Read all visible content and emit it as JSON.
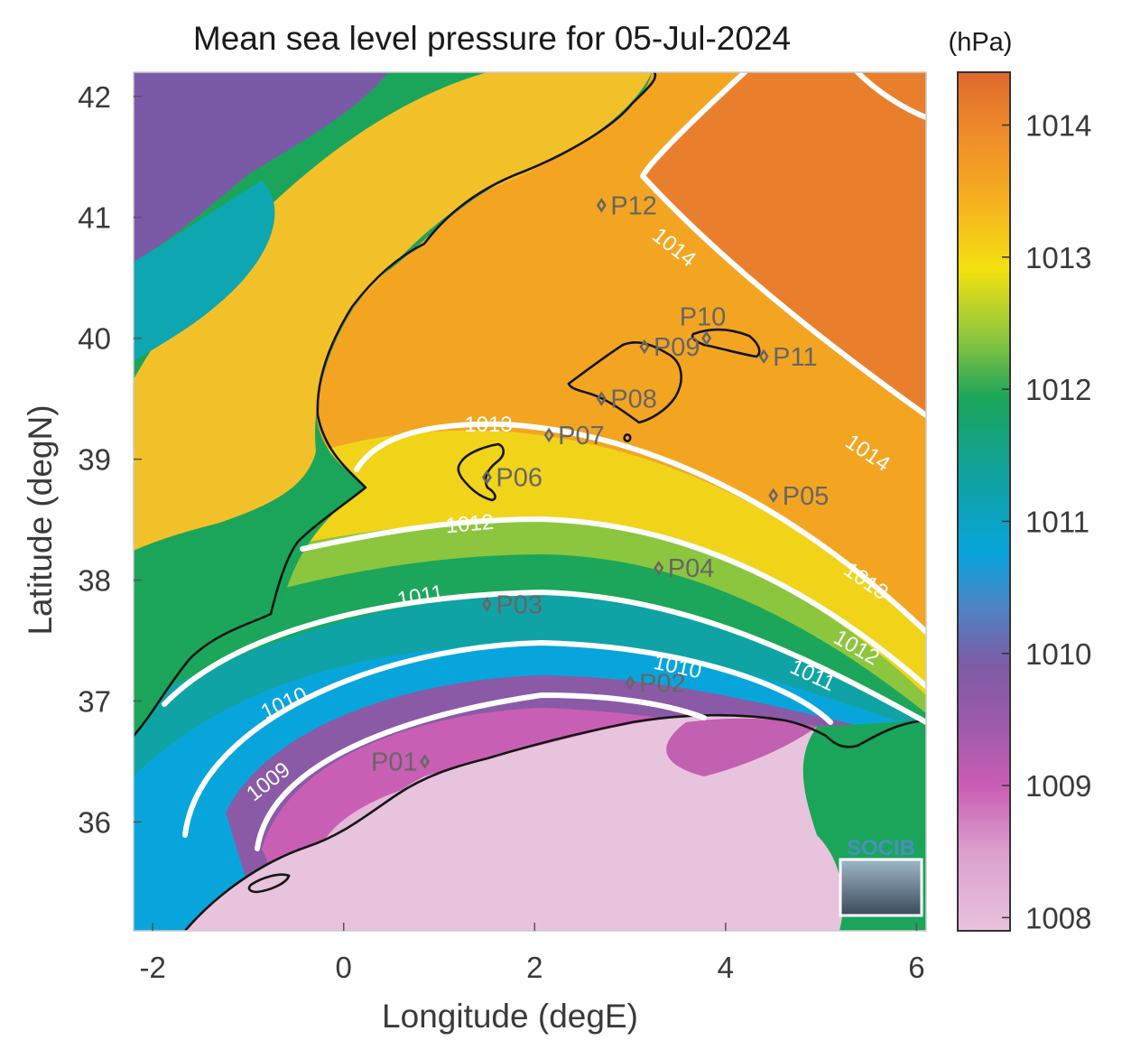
{
  "title": "Mean sea level pressure for 05-Jul-2024",
  "colorbar": {
    "unit": "(hPa)",
    "ticks": [
      "1008",
      "1009",
      "1010",
      "1011",
      "1012",
      "1013",
      "1014"
    ],
    "range": [
      1007.9,
      1014.4
    ],
    "stops": [
      "#e8c1dc",
      "#c95cb3",
      "#7e5aa6",
      "#3a8ecc",
      "#07a4dc",
      "#12a2a0",
      "#1aa55a",
      "#8cc63e",
      "#f3e10f",
      "#f6b020",
      "#ee8a2a",
      "#de6a2d"
    ]
  },
  "axes": {
    "xlabel": "Longitude (degE)",
    "ylabel": "Latitude (degN)",
    "xlim": [
      -2.2,
      6.1
    ],
    "ylim": [
      35.1,
      42.2
    ],
    "xticks": [
      "-2",
      "0",
      "2",
      "4",
      "6"
    ],
    "yticks": [
      "36",
      "37",
      "38",
      "39",
      "40",
      "41",
      "42"
    ]
  },
  "contours": [
    {
      "level": "1009",
      "labels": [
        "1009"
      ]
    },
    {
      "level": "1010",
      "labels": [
        "1010",
        "1010"
      ]
    },
    {
      "level": "1011",
      "labels": [
        "1011",
        "1011"
      ]
    },
    {
      "level": "1012",
      "labels": [
        "1012",
        "1012"
      ]
    },
    {
      "level": "1013",
      "labels": [
        "1013",
        "1013"
      ]
    },
    {
      "level": "1014",
      "labels": [
        "1014",
        "1014"
      ]
    }
  ],
  "points": [
    {
      "name": "P01",
      "lon": 0.85,
      "lat": 36.5
    },
    {
      "name": "P02",
      "lon": 3.0,
      "lat": 37.15
    },
    {
      "name": "P03",
      "lon": 1.5,
      "lat": 37.8
    },
    {
      "name": "P04",
      "lon": 3.3,
      "lat": 38.1
    },
    {
      "name": "P05",
      "lon": 4.5,
      "lat": 38.7
    },
    {
      "name": "P06",
      "lon": 1.5,
      "lat": 38.85
    },
    {
      "name": "P07",
      "lon": 2.15,
      "lat": 39.2
    },
    {
      "name": "P08",
      "lon": 2.7,
      "lat": 39.5
    },
    {
      "name": "P09",
      "lon": 3.15,
      "lat": 39.93
    },
    {
      "name": "P10",
      "lon": 3.8,
      "lat": 40.0
    },
    {
      "name": "P11",
      "lon": 4.4,
      "lat": 39.85
    },
    {
      "name": "P12",
      "lon": 2.7,
      "lat": 41.1
    }
  ],
  "logo": {
    "text": "SOCIB"
  }
}
